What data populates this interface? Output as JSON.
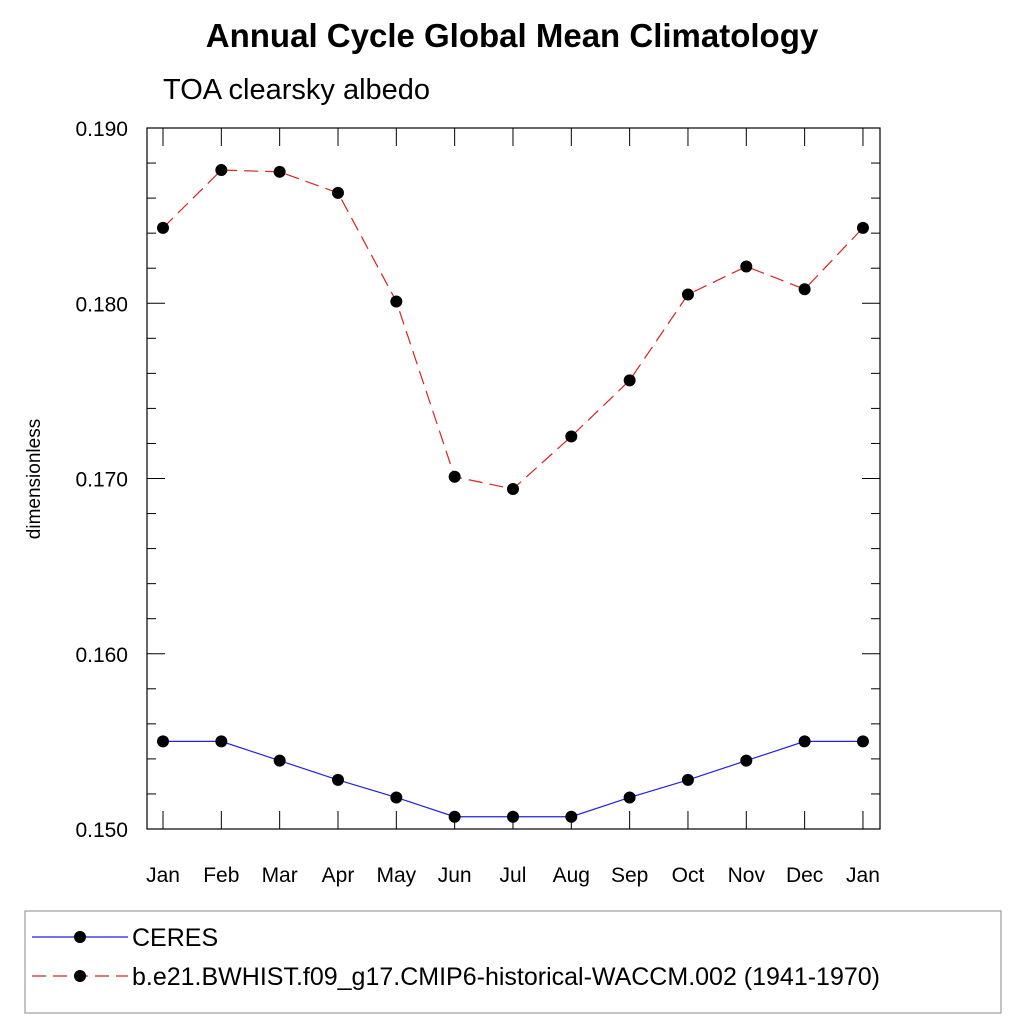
{
  "chart_data": {
    "type": "line",
    "title": "Annual Cycle Global Mean Climatology",
    "subtitle": "TOA clearsky albedo",
    "ylabel": "dimensionless",
    "xlabel": "",
    "categories": [
      "Jan",
      "Feb",
      "Mar",
      "Apr",
      "May",
      "Jun",
      "Jul",
      "Aug",
      "Sep",
      "Oct",
      "Nov",
      "Dec",
      "Jan"
    ],
    "ylim": [
      0.15,
      0.19
    ],
    "yticks": [
      "0.150",
      "0.160",
      "0.170",
      "0.180",
      "0.190"
    ],
    "yticks_values": [
      0.15,
      0.16,
      0.17,
      0.18,
      0.19
    ],
    "legend_position": "bottom",
    "series": [
      {
        "name": "CERES",
        "color": "#2222dd",
        "dash": "solid",
        "values": [
          0.155,
          0.155,
          0.1539,
          0.1528,
          0.1518,
          0.1507,
          0.1507,
          0.1507,
          0.1518,
          0.1528,
          0.1539,
          0.155,
          0.155
        ]
      },
      {
        "name": "b.e21.BWHIST.f09_g17.CMIP6-historical-WACCM.002 (1941-1970)",
        "color": "#dd2222",
        "dash": "dashed",
        "values": [
          0.1843,
          0.1876,
          0.1875,
          0.1863,
          0.1801,
          0.1701,
          0.1694,
          0.1724,
          0.1756,
          0.1805,
          0.1821,
          0.1808,
          0.1843
        ]
      }
    ]
  }
}
